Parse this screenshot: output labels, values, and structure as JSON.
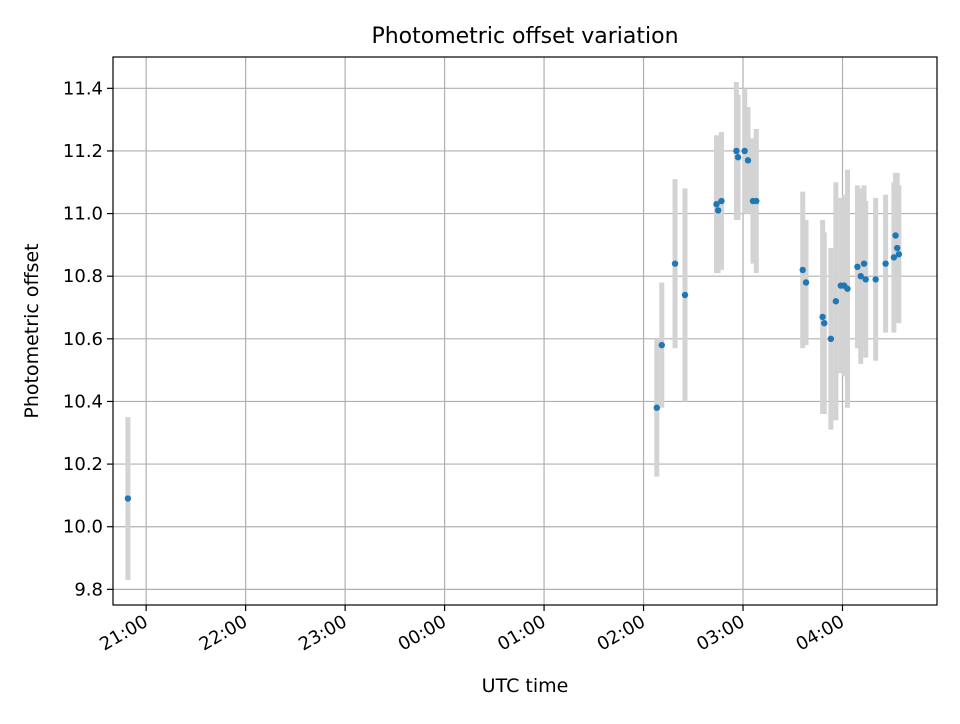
{
  "chart_data": {
    "type": "scatter",
    "title": "Photometric offset variation",
    "xlabel": "UTC time",
    "ylabel": "Photometric offset",
    "xlim": [
      "20:40",
      "04:57"
    ],
    "ylim": [
      9.75,
      11.5
    ],
    "x_ticks": [
      "21:00",
      "22:00",
      "23:00",
      "00:00",
      "01:00",
      "02:00",
      "03:00",
      "04:00"
    ],
    "y_ticks": [
      "9.8",
      "10.0",
      "10.2",
      "10.4",
      "10.6",
      "10.8",
      "11.0",
      "11.2",
      "11.4"
    ],
    "grid": true,
    "marker_color": "#1f77b4",
    "errorbar_color": "#d3d3d3",
    "points": [
      {
        "t": "20:49",
        "y": 10.09,
        "err": 0.26
      },
      {
        "t": "02:08",
        "y": 10.38,
        "err": 0.22
      },
      {
        "t": "02:11",
        "y": 10.58,
        "err": 0.2
      },
      {
        "t": "02:19",
        "y": 10.84,
        "err": 0.27
      },
      {
        "t": "02:25",
        "y": 10.74,
        "err": 0.34
      },
      {
        "t": "02:44",
        "y": 11.03,
        "err": 0.22
      },
      {
        "t": "02:45",
        "y": 11.01,
        "err": 0.2
      },
      {
        "t": "02:47",
        "y": 11.04,
        "err": 0.22
      },
      {
        "t": "02:56",
        "y": 11.2,
        "err": 0.22
      },
      {
        "t": "02:57",
        "y": 11.18,
        "err": 0.2
      },
      {
        "t": "03:01",
        "y": 11.2,
        "err": 0.2
      },
      {
        "t": "03:03",
        "y": 11.17,
        "err": 0.17
      },
      {
        "t": "03:06",
        "y": 11.04,
        "err": 0.2
      },
      {
        "t": "03:08",
        "y": 11.04,
        "err": 0.23
      },
      {
        "t": "03:36",
        "y": 10.82,
        "err": 0.25
      },
      {
        "t": "03:38",
        "y": 10.78,
        "err": 0.2
      },
      {
        "t": "03:48",
        "y": 10.67,
        "err": 0.31
      },
      {
        "t": "03:49",
        "y": 10.65,
        "err": 0.29
      },
      {
        "t": "03:53",
        "y": 10.6,
        "err": 0.29
      },
      {
        "t": "03:56",
        "y": 10.72,
        "err": 0.38
      },
      {
        "t": "03:59",
        "y": 10.77,
        "err": 0.28
      },
      {
        "t": "04:01",
        "y": 10.77,
        "err": 0.29
      },
      {
        "t": "04:03",
        "y": 10.76,
        "err": 0.38
      },
      {
        "t": "04:09",
        "y": 10.83,
        "err": 0.26
      },
      {
        "t": "04:11",
        "y": 10.8,
        "err": 0.28
      },
      {
        "t": "04:13",
        "y": 10.84,
        "err": 0.25
      },
      {
        "t": "04:14",
        "y": 10.79,
        "err": 0.25
      },
      {
        "t": "04:20",
        "y": 10.79,
        "err": 0.26
      },
      {
        "t": "04:26",
        "y": 10.84,
        "err": 0.22
      },
      {
        "t": "04:31",
        "y": 10.86,
        "err": 0.24
      },
      {
        "t": "04:32",
        "y": 10.93,
        "err": 0.2
      },
      {
        "t": "04:33",
        "y": 10.89,
        "err": 0.24
      },
      {
        "t": "04:34",
        "y": 10.87,
        "err": 0.22
      }
    ]
  }
}
